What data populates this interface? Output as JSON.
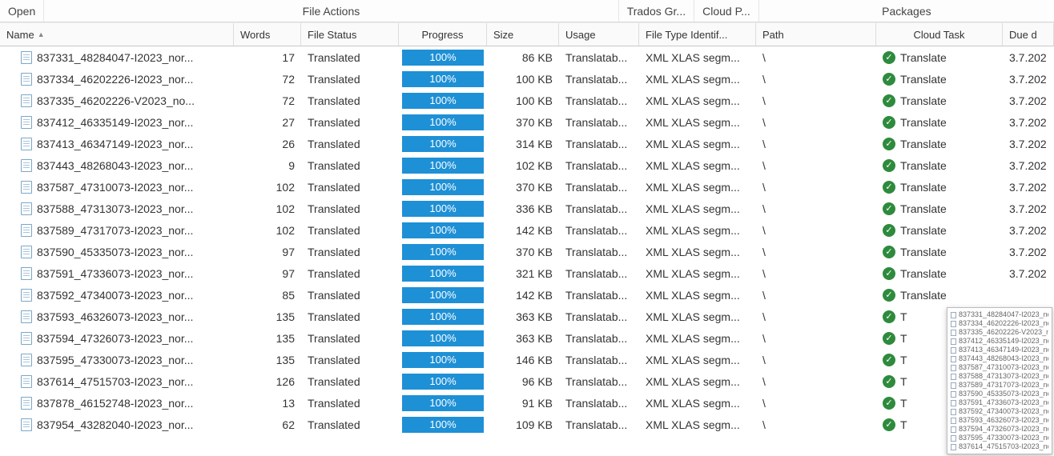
{
  "toolbar": {
    "open": "Open",
    "file_actions": "File Actions",
    "trados": "Trados Gr...",
    "cloud": "Cloud P...",
    "packages": "Packages"
  },
  "columns": {
    "name": "Name",
    "words": "Words",
    "status": "File Status",
    "progress": "Progress",
    "size": "Size",
    "usage": "Usage",
    "type": "File Type Identif...",
    "path": "Path",
    "task": "Cloud Task",
    "due": "Due d"
  },
  "common": {
    "status": "Translated",
    "progress": "100%",
    "usage": "Translatab...",
    "type": "XML XLAS segm...",
    "path": "\\",
    "task": "Translate",
    "task_short": "T",
    "due": "3.7.202"
  },
  "colors": {
    "progress_bg": "#1e90d6",
    "check_bg": "#2e8b3d"
  },
  "rows": [
    {
      "name": "837331_48284047-I2023_nor...",
      "words": 17,
      "size": "86 KB",
      "task_cut": false,
      "due_cut": false
    },
    {
      "name": "837334_46202226-I2023_nor...",
      "words": 72,
      "size": "100 KB",
      "task_cut": false,
      "due_cut": false
    },
    {
      "name": "837335_46202226-V2023_no...",
      "words": 72,
      "size": "100 KB",
      "task_cut": false,
      "due_cut": false
    },
    {
      "name": "837412_46335149-I2023_nor...",
      "words": 27,
      "size": "370 KB",
      "task_cut": false,
      "due_cut": false
    },
    {
      "name": "837413_46347149-I2023_nor...",
      "words": 26,
      "size": "314 KB",
      "task_cut": false,
      "due_cut": false
    },
    {
      "name": "837443_48268043-I2023_nor...",
      "words": 9,
      "size": "102 KB",
      "task_cut": false,
      "due_cut": false
    },
    {
      "name": "837587_47310073-I2023_nor...",
      "words": 102,
      "size": "370 KB",
      "task_cut": false,
      "due_cut": false
    },
    {
      "name": "837588_47313073-I2023_nor...",
      "words": 102,
      "size": "336 KB",
      "task_cut": false,
      "due_cut": false
    },
    {
      "name": "837589_47317073-I2023_nor...",
      "words": 102,
      "size": "142 KB",
      "task_cut": false,
      "due_cut": false
    },
    {
      "name": "837590_45335073-I2023_nor...",
      "words": 97,
      "size": "370 KB",
      "task_cut": false,
      "due_cut": false
    },
    {
      "name": "837591_47336073-I2023_nor...",
      "words": 97,
      "size": "321 KB",
      "task_cut": false,
      "due_cut": false
    },
    {
      "name": "837592_47340073-I2023_nor...",
      "words": 85,
      "size": "142 KB",
      "task_cut": false,
      "due_cut": true
    },
    {
      "name": "837593_46326073-I2023_nor...",
      "words": 135,
      "size": "363 KB",
      "task_cut": true,
      "due_cut": true
    },
    {
      "name": "837594_47326073-I2023_nor...",
      "words": 135,
      "size": "363 KB",
      "task_cut": true,
      "due_cut": true
    },
    {
      "name": "837595_47330073-I2023_nor...",
      "words": 135,
      "size": "146 KB",
      "task_cut": true,
      "due_cut": true
    },
    {
      "name": "837614_47515703-I2023_nor...",
      "words": 126,
      "size": "96 KB",
      "task_cut": true,
      "due_cut": true
    },
    {
      "name": "837878_46152748-I2023_nor...",
      "words": 13,
      "size": "91 KB",
      "task_cut": true,
      "due_cut": true
    },
    {
      "name": "837954_43282040-I2023_nor...",
      "words": 62,
      "size": "109 KB",
      "task_cut": true,
      "due_cut": true
    }
  ],
  "tooltip": [
    "837331_48284047-I2023_nor...",
    "837334_46202226-I2023_nor...",
    "837335_46202226-V2023_no...",
    "837412_46335149-I2023_nor...",
    "837413_46347149-I2023_nor...",
    "837443_48268043-I2023_nor...",
    "837587_47310073-I2023_nor...",
    "837588_47313073-I2023_nor...",
    "837589_47317073-I2023_nor...",
    "837590_45335073-I2023_nor...",
    "837591_47336073-I2023_nor...",
    "837592_47340073-I2023_nor...",
    "837593_46326073-I2023_nor...",
    "837594_47326073-I2023_nor...",
    "837595_47330073-I2023_nor...",
    "837614_47515703-I2023_nor..."
  ]
}
